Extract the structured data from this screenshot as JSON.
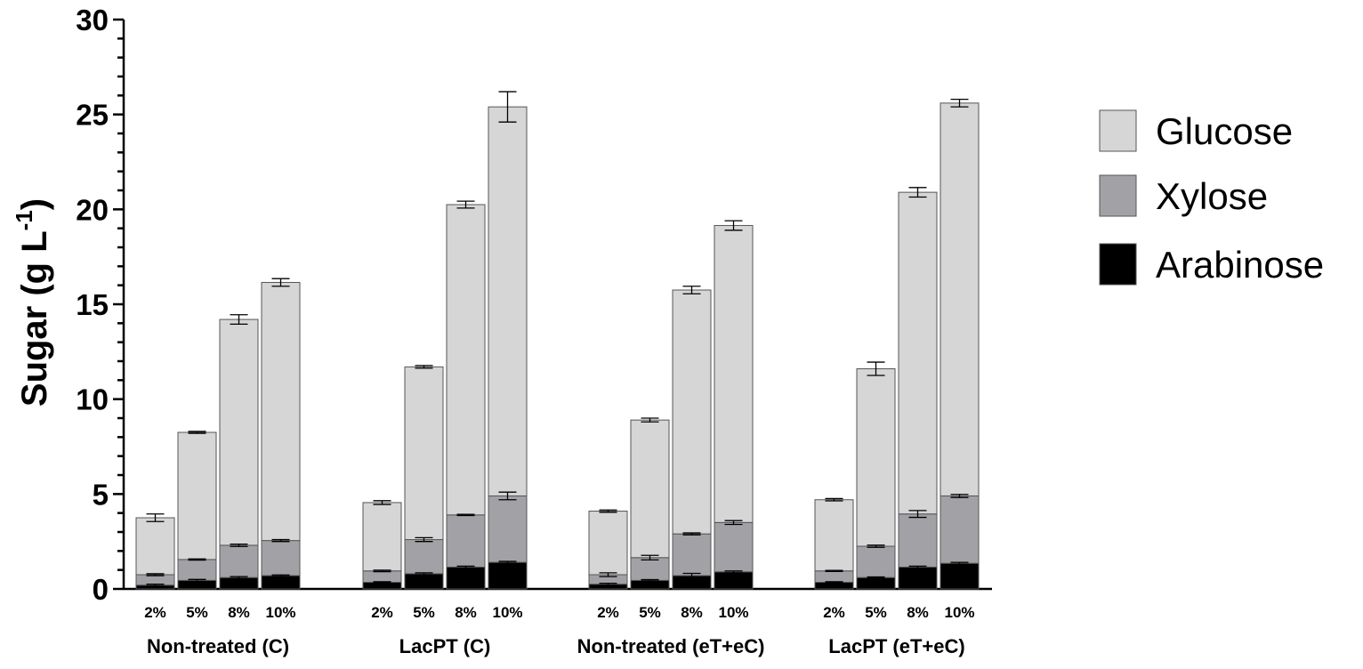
{
  "chart_data": {
    "type": "bar",
    "stacked": true,
    "ylabel": "Sugar (g L",
    "ylabel_superscript": "-1",
    "ylabel_close": ")",
    "ylim": [
      0,
      30
    ],
    "yticks": [
      "0",
      "5",
      "10",
      "15",
      "20",
      "25",
      "30"
    ],
    "grid": false,
    "legend_position": "right",
    "groups": [
      "Non-treated (C)",
      "LacPT (C)",
      "Non-treated (eT+eC)",
      "LacPT (eT+eC)"
    ],
    "categories": [
      "2%",
      "5%",
      "8%",
      "10%"
    ],
    "series": [
      {
        "name": "Arabinose",
        "color": "#000000",
        "values": [
          [
            0.2,
            0.45,
            0.6,
            0.7
          ],
          [
            0.35,
            0.8,
            1.15,
            1.4
          ],
          [
            0.25,
            0.45,
            0.7,
            0.9
          ],
          [
            0.35,
            0.6,
            1.15,
            1.35
          ]
        ],
        "errors": [
          [
            0.05,
            0.05,
            0.05,
            0.04
          ],
          [
            0.03,
            0.05,
            0.05,
            0.05
          ],
          [
            0.05,
            0.04,
            0.12,
            0.05
          ],
          [
            0.03,
            0.03,
            0.05,
            0.05
          ]
        ]
      },
      {
        "name": "Xylose",
        "color": "#a2a2a6",
        "values": [
          [
            0.55,
            1.1,
            1.7,
            1.85
          ],
          [
            0.6,
            1.8,
            2.75,
            3.5
          ],
          [
            0.5,
            1.2,
            2.2,
            2.6
          ],
          [
            0.6,
            1.65,
            2.8,
            3.55
          ]
        ],
        "errors": [
          [
            0.05,
            0.03,
            0.06,
            0.05
          ],
          [
            0.04,
            0.1,
            0.03,
            0.2
          ],
          [
            0.1,
            0.12,
            0.05,
            0.1
          ],
          [
            0.03,
            0.06,
            0.18,
            0.08
          ]
        ]
      },
      {
        "name": "Glucose",
        "color": "#d6d6d6",
        "values": [
          [
            3.0,
            6.7,
            11.9,
            13.6
          ],
          [
            3.6,
            9.1,
            16.35,
            20.5
          ],
          [
            3.35,
            7.25,
            12.85,
            15.65
          ],
          [
            3.75,
            9.35,
            16.95,
            20.7
          ]
        ],
        "errors": [
          [
            0.2,
            0.05,
            0.25,
            0.2
          ],
          [
            0.1,
            0.07,
            0.18,
            0.8
          ],
          [
            0.06,
            0.1,
            0.2,
            0.25
          ],
          [
            0.06,
            0.35,
            0.25,
            0.2
          ]
        ]
      }
    ],
    "legend_order": [
      "Glucose",
      "Xylose",
      "Arabinose"
    ]
  }
}
